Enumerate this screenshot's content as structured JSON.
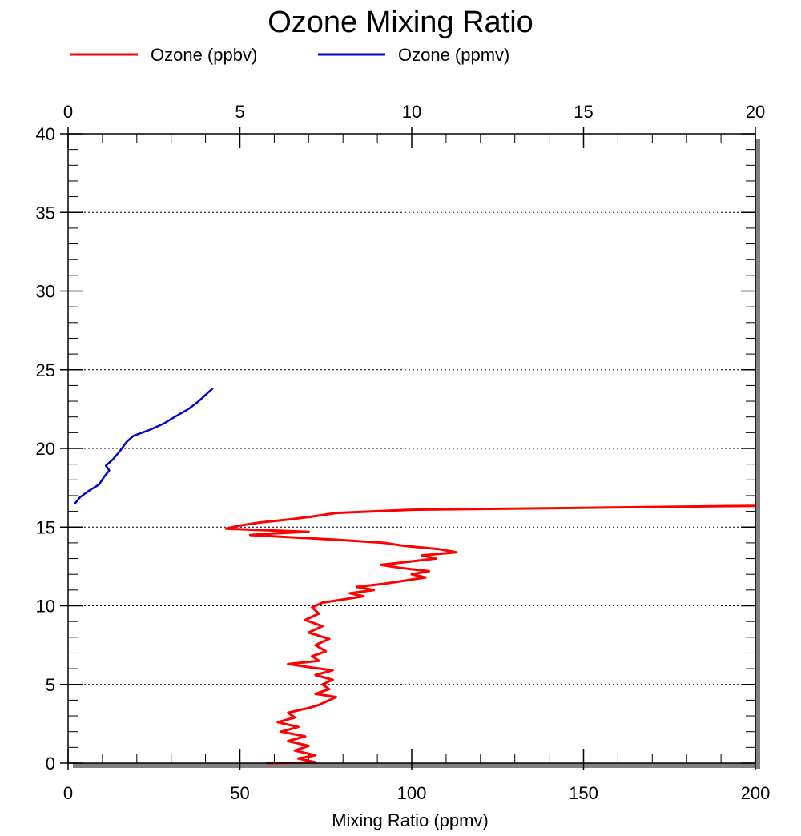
{
  "chart_data": {
    "type": "line",
    "title": "Ozone Mixing Ratio",
    "xlabel": "Mixing Ratio (ppmv)",
    "ylabel": "",
    "x_bottom": {
      "range": [
        0,
        200
      ],
      "ticks": [
        0,
        50,
        100,
        150,
        200
      ],
      "tick_labels": [
        "0",
        "50",
        "100",
        "150",
        "200"
      ]
    },
    "x_top": {
      "range": [
        0,
        20
      ],
      "ticks": [
        0,
        5,
        10,
        15,
        20
      ],
      "tick_labels": [
        "0",
        "5",
        "10",
        "15",
        "20"
      ]
    },
    "y": {
      "range": [
        0,
        40
      ],
      "ticks": [
        0,
        5,
        10,
        15,
        20,
        25,
        30,
        35,
        40
      ],
      "tick_labels": [
        "0",
        "5",
        "10",
        "15",
        "20",
        "25",
        "30",
        "35",
        "40"
      ]
    },
    "grid": "horizontal dotted",
    "legend": "top-left",
    "colors": {
      "ozone_ppbv": "#ff0000",
      "ozone_ppmv": "#0000cc",
      "shadow": "#808080"
    },
    "series": [
      {
        "name": "Ozone (ppbv)",
        "color": "#ff0000",
        "axis": "bottom",
        "points": [
          [
            58,
            0.0
          ],
          [
            72,
            0.05
          ],
          [
            67,
            0.3
          ],
          [
            72,
            0.5
          ],
          [
            66,
            0.8
          ],
          [
            70,
            1.1
          ],
          [
            64,
            1.4
          ],
          [
            69,
            1.7
          ],
          [
            62,
            2.0
          ],
          [
            67,
            2.3
          ],
          [
            61,
            2.6
          ],
          [
            66,
            2.9
          ],
          [
            64,
            3.2
          ],
          [
            70,
            3.5
          ],
          [
            73,
            3.7
          ],
          [
            76,
            4.0
          ],
          [
            78,
            4.2
          ],
          [
            72,
            4.4
          ],
          [
            76,
            4.7
          ],
          [
            74,
            5.0
          ],
          [
            77,
            5.3
          ],
          [
            72,
            5.6
          ],
          [
            77,
            5.9
          ],
          [
            70,
            6.1
          ],
          [
            64,
            6.3
          ],
          [
            73,
            6.5
          ],
          [
            71,
            6.8
          ],
          [
            75,
            7.1
          ],
          [
            72,
            7.5
          ],
          [
            76,
            7.9
          ],
          [
            70,
            8.3
          ],
          [
            74,
            8.7
          ],
          [
            69,
            9.1
          ],
          [
            73,
            9.5
          ],
          [
            71,
            9.9
          ],
          [
            74,
            10.2
          ],
          [
            80,
            10.4
          ],
          [
            86,
            10.6
          ],
          [
            82,
            10.8
          ],
          [
            89,
            11.0
          ],
          [
            84,
            11.2
          ],
          [
            92,
            11.4
          ],
          [
            98,
            11.6
          ],
          [
            104,
            11.8
          ],
          [
            100,
            12.0
          ],
          [
            105,
            12.2
          ],
          [
            97,
            12.4
          ],
          [
            91,
            12.6
          ],
          [
            99,
            12.8
          ],
          [
            107,
            13.0
          ],
          [
            103,
            13.2
          ],
          [
            113,
            13.4
          ],
          [
            108,
            13.6
          ],
          [
            98,
            13.8
          ],
          [
            92,
            14.0
          ],
          [
            78,
            14.2
          ],
          [
            65,
            14.35
          ],
          [
            53,
            14.5
          ],
          [
            60,
            14.6
          ],
          [
            70,
            14.7
          ],
          [
            58,
            14.8
          ],
          [
            46,
            14.9
          ],
          [
            50,
            15.1
          ],
          [
            56,
            15.3
          ],
          [
            65,
            15.5
          ],
          [
            72,
            15.7
          ],
          [
            78,
            15.9
          ],
          [
            100,
            16.1
          ],
          [
            140,
            16.2
          ],
          [
            170,
            16.28
          ],
          [
            200,
            16.35
          ]
        ]
      },
      {
        "name": "Ozone (ppmv)",
        "color": "#0000cc",
        "axis": "top",
        "points": [
          [
            0.2,
            16.5
          ],
          [
            0.35,
            16.9
          ],
          [
            0.6,
            17.3
          ],
          [
            0.9,
            17.7
          ],
          [
            1.05,
            18.2
          ],
          [
            1.2,
            18.6
          ],
          [
            1.1,
            18.9
          ],
          [
            1.3,
            19.3
          ],
          [
            1.5,
            19.8
          ],
          [
            1.7,
            20.4
          ],
          [
            1.9,
            20.8
          ],
          [
            2.4,
            21.2
          ],
          [
            2.8,
            21.6
          ],
          [
            3.1,
            22.0
          ],
          [
            3.5,
            22.5
          ],
          [
            3.8,
            23.0
          ],
          [
            4.0,
            23.4
          ],
          [
            4.2,
            23.8
          ]
        ]
      }
    ]
  }
}
